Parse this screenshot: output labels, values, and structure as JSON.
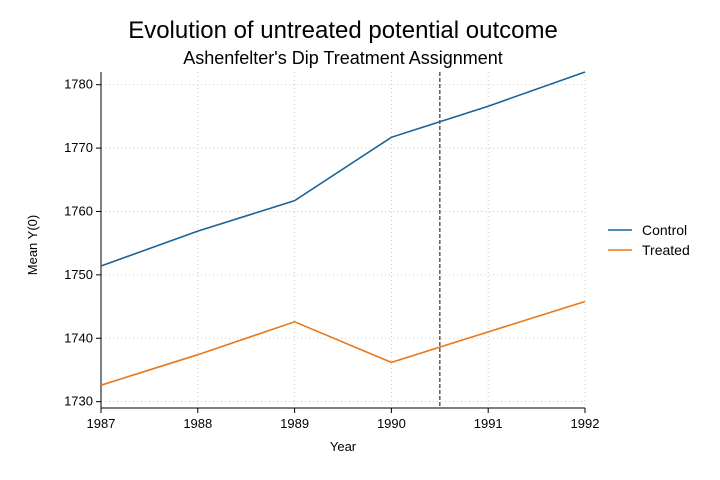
{
  "chart_data": {
    "type": "line",
    "title": "Evolution of untreated potential outcome",
    "subtitle": "Ashenfelter's Dip Treatment Assignment",
    "xlabel": "Year",
    "ylabel": "Mean Y(0)",
    "x": [
      1987,
      1988,
      1989,
      1990,
      1991,
      1992
    ],
    "xlim": [
      1987,
      1992
    ],
    "ylim": [
      1729,
      1782
    ],
    "yticks": [
      1730,
      1740,
      1750,
      1760,
      1770,
      1780
    ],
    "grid": true,
    "legend_position": "right",
    "vline_x": 1990.5,
    "series": [
      {
        "name": "Control",
        "color": "#1a6496",
        "values": [
          1751.4,
          1756.9,
          1761.7,
          1771.7,
          1776.6,
          1782.0
        ]
      },
      {
        "name": "Treated",
        "color": "#e8771a",
        "values": [
          1732.6,
          1737.4,
          1742.6,
          1736.2,
          1741.0,
          1745.8
        ]
      }
    ]
  }
}
